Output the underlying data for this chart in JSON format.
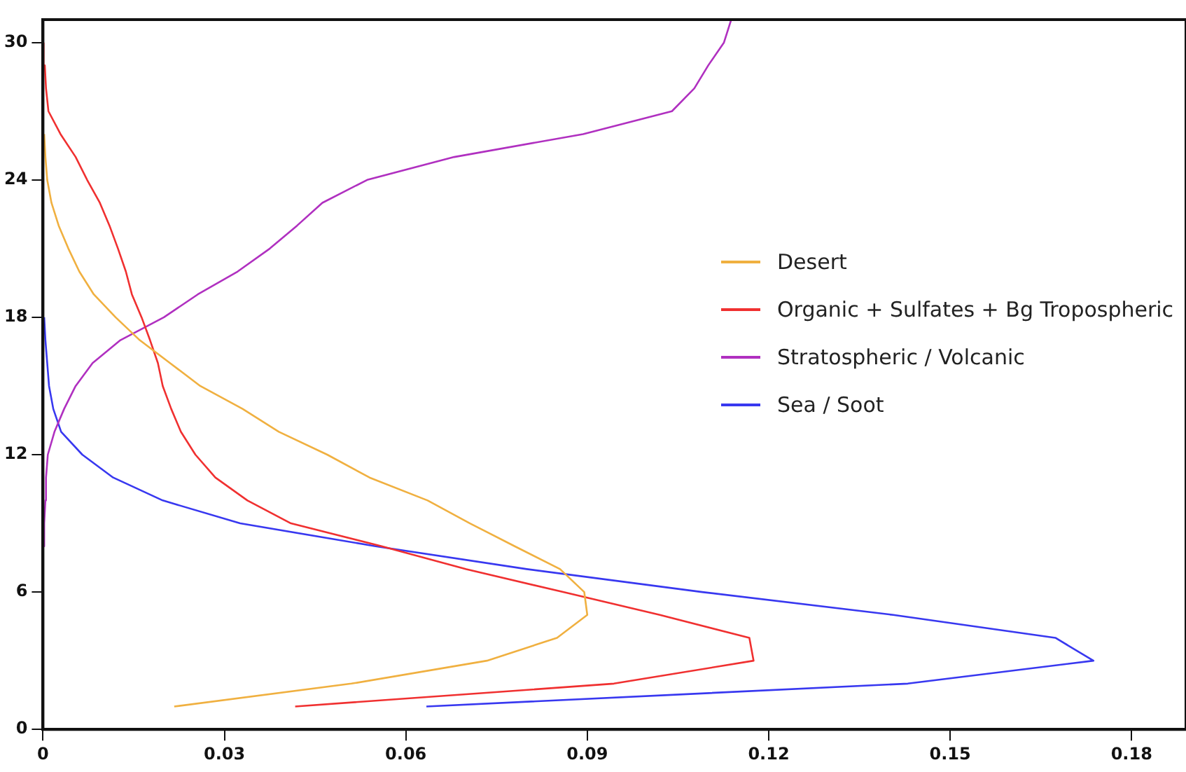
{
  "chart_data": {
    "type": "line",
    "xlim": [
      0,
      0.189
    ],
    "ylim": [
      0,
      31
    ],
    "xticks": [
      0,
      0.03,
      0.06,
      0.09,
      0.12,
      0.15,
      0.18
    ],
    "yticks": [
      0,
      6,
      12,
      18,
      24,
      30
    ],
    "grid": false,
    "legend": "right",
    "marker": "none",
    "series": [
      {
        "name": "Desert",
        "color": "#f0b040",
        "x": [
          0.0217,
          0.051,
          0.0734,
          0.085,
          0.09,
          0.0895,
          0.0855,
          0.078,
          0.0706,
          0.0636,
          0.054,
          0.047,
          0.039,
          0.033,
          0.026,
          0.021,
          0.016,
          0.012,
          0.0084,
          0.006,
          0.0042,
          0.0026,
          0.0014,
          0.0007,
          0.0004,
          0.0002
        ],
        "values": [
          1,
          2,
          3,
          4,
          5,
          6,
          7,
          8,
          9,
          10,
          11,
          12,
          13,
          14,
          15,
          16,
          17,
          18,
          19,
          20,
          21,
          22,
          23,
          24,
          25,
          26
        ]
      },
      {
        "name": "Organic + Sulfates + Bg Tropospheric",
        "color": "#f03030",
        "x": [
          0.0417,
          0.0944,
          0.1175,
          0.1168,
          0.102,
          0.086,
          0.07,
          0.056,
          0.041,
          0.0338,
          0.0285,
          0.0252,
          0.0228,
          0.0212,
          0.0198,
          0.019,
          0.0177,
          0.0163,
          0.0147,
          0.0137,
          0.0124,
          0.011,
          0.0094,
          0.0073,
          0.0054,
          0.0029,
          0.0009,
          0.0005,
          0.0003,
          0.0001
        ],
        "values": [
          1,
          2,
          3,
          4,
          5,
          6,
          7,
          8,
          9,
          10,
          11,
          12,
          13,
          14,
          15,
          16,
          17,
          18,
          19,
          20,
          21,
          22,
          23,
          24,
          25,
          26,
          27,
          28,
          29,
          30
        ]
      },
      {
        "name": "Stratospheric / Volcanic",
        "color": "#b030c0",
        "x": [
          0.0001,
          0.0002,
          0.0004,
          0.0005,
          0.0008,
          0.0019,
          0.0035,
          0.0054,
          0.0082,
          0.0128,
          0.02,
          0.0256,
          0.0322,
          0.0375,
          0.042,
          0.0462,
          0.0536,
          0.068,
          0.0893,
          0.104,
          0.1077,
          0.11,
          0.1126,
          0.1138
        ],
        "values": [
          8,
          9,
          10,
          11,
          12,
          13,
          14,
          15,
          16,
          17,
          18,
          19,
          20,
          21,
          22,
          23,
          24,
          25,
          26,
          27,
          28,
          29,
          30,
          31
        ]
      },
      {
        "name": "Sea / Soot",
        "color": "#3838f0",
        "x": [
          0.0634,
          0.143,
          0.1737,
          0.1674,
          0.1406,
          0.109,
          0.08,
          0.055,
          0.0326,
          0.0198,
          0.0116,
          0.0065,
          0.003,
          0.0017,
          0.001,
          0.0007,
          0.0004,
          0.0002
        ],
        "values": [
          1,
          2,
          3,
          4,
          5,
          6,
          7,
          8,
          9,
          10,
          11,
          12,
          13,
          14,
          15,
          16,
          17,
          18
        ]
      }
    ]
  }
}
